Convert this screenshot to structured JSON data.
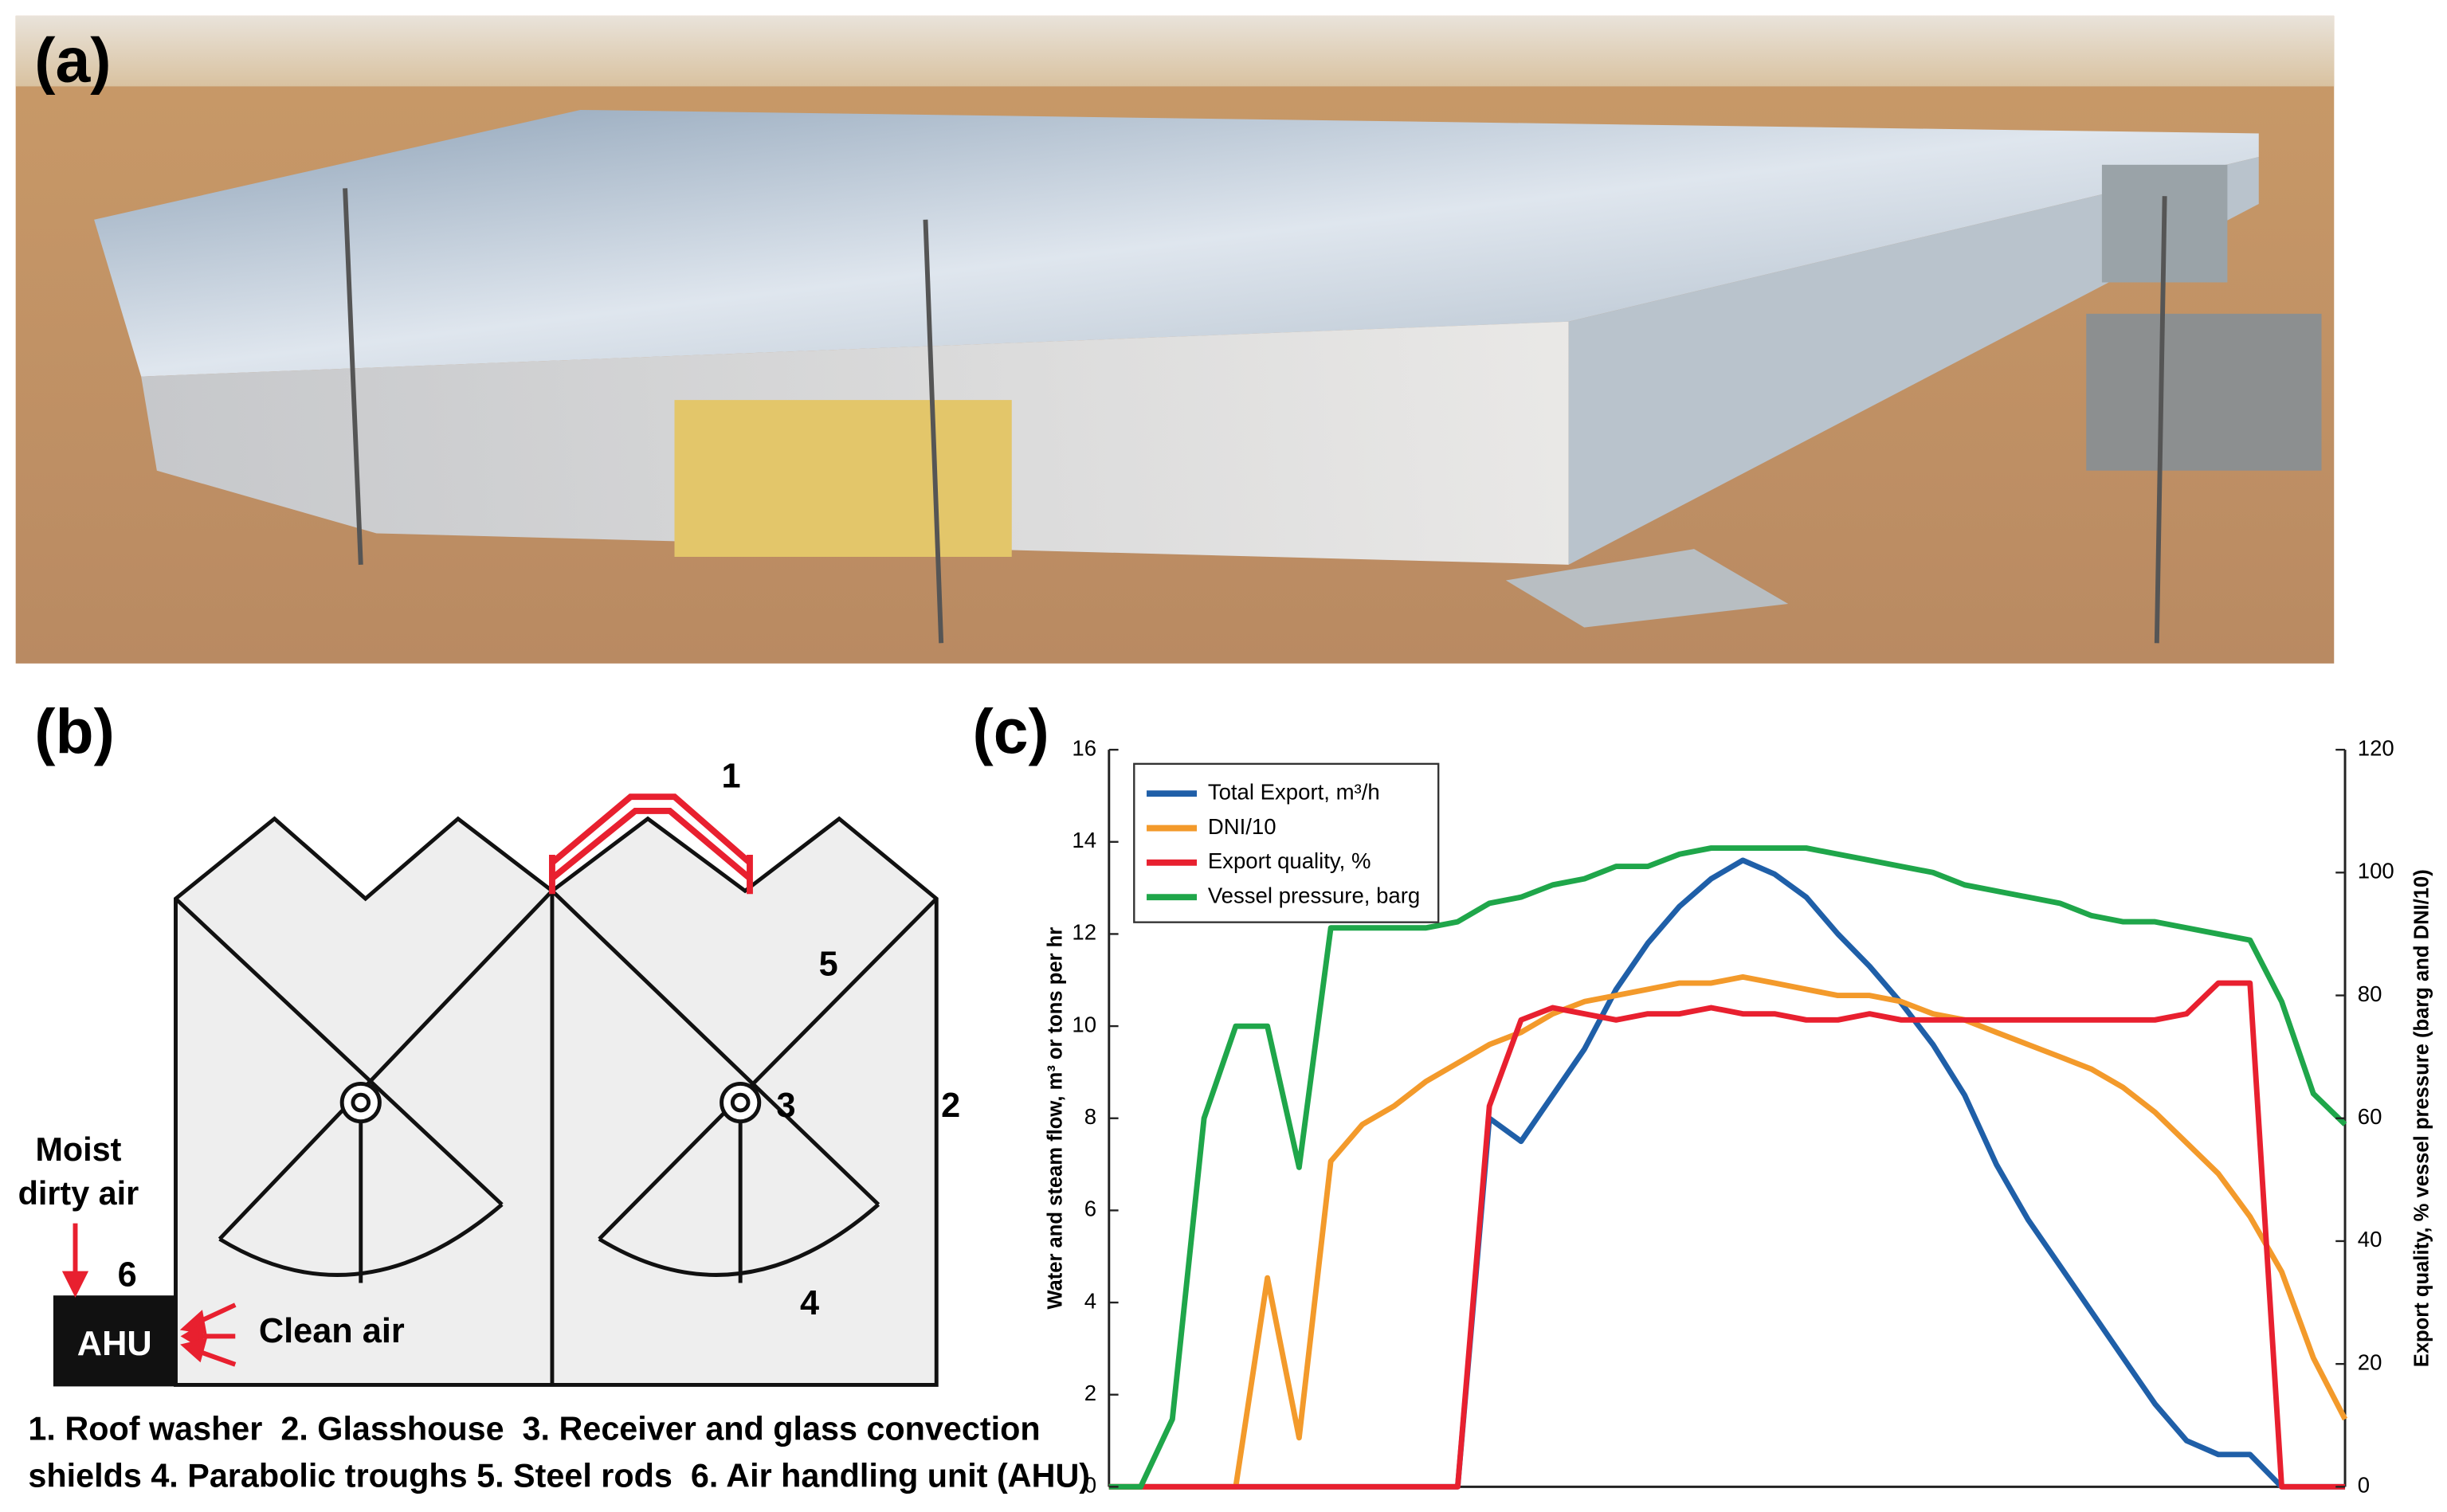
{
  "panels": {
    "a": {
      "label": "(a)"
    },
    "b": {
      "label": "(b)",
      "numbers": [
        "1",
        "2",
        "3",
        "4",
        "5",
        "6"
      ],
      "inlet": "Moist dirty air",
      "unit": "AHU",
      "outlet": "Clean air",
      "caption": [
        "1. Roof washer  2. Glasshouse  3. Receiver and glass convection",
        "shields 4. Parabolic troughs 5. Steel rods  6. Air handling unit (AHU)"
      ]
    },
    "c": {
      "label": "(c)"
    }
  },
  "chart_data": {
    "type": "line",
    "y_label": "Water and steam flow, m³ or tons per hr",
    "y2_label": "Export quality, % vessel pressure (barg and DNI/10)",
    "categories": [
      null,
      null,
      null,
      null,
      null,
      null,
      null,
      null,
      null,
      null,
      null,
      null,
      null,
      null,
      null,
      null,
      null,
      null,
      null,
      null,
      null,
      null,
      null,
      null,
      null,
      null,
      null,
      null,
      null,
      null,
      null,
      null,
      null,
      null,
      null,
      null,
      null,
      null,
      null,
      null
    ],
    "ylim": [
      0,
      16
    ],
    "yticks": [
      0,
      2,
      4,
      6,
      8,
      10,
      12,
      14,
      16
    ],
    "y2lim": [
      0,
      120
    ],
    "y2ticks": [
      0,
      20,
      40,
      60,
      80,
      100,
      120
    ],
    "legend": "upper left",
    "series": [
      {
        "name": "Total Export, m³/h",
        "color": "#1f5fa8",
        "values": [
          0,
          0,
          0,
          0,
          0,
          0,
          0,
          0,
          0,
          0,
          0,
          0,
          8,
          7.5,
          8.5,
          9.5,
          10.8,
          11.8,
          12.6,
          13.2,
          13.6,
          13.3,
          12.8,
          12.0,
          11.3,
          10.5,
          9.6,
          8.5,
          7.0,
          5.8,
          4.8,
          3.8,
          2.8,
          1.8,
          1.0,
          0.7,
          0.7,
          0,
          0,
          0
        ]
      },
      {
        "name": "DNI/10",
        "color": "#f39a2b",
        "axis": "y2",
        "values": [
          0,
          0,
          0,
          0,
          0,
          34,
          8,
          53,
          59,
          62,
          66,
          69,
          72,
          74,
          77,
          79,
          80,
          81,
          82,
          82,
          83,
          82,
          81,
          80,
          80,
          79,
          77,
          76,
          74,
          72,
          70,
          68,
          65,
          61,
          56,
          51,
          44,
          35,
          21,
          11
        ]
      },
      {
        "name": "Export quality, %",
        "color": "#e8202f",
        "axis": "y2",
        "values": [
          0,
          0,
          0,
          0,
          0,
          0,
          0,
          0,
          0,
          0,
          0,
          0,
          62,
          76,
          78,
          77,
          76,
          77,
          77,
          78,
          77,
          77,
          76,
          76,
          77,
          76,
          76,
          76,
          76,
          76,
          76,
          76,
          76,
          76,
          77,
          82,
          82,
          0,
          0,
          0
        ]
      },
      {
        "name": "Vessel pressure, barg",
        "color": "#1fa64a",
        "axis": "y2",
        "values": [
          0,
          0,
          11,
          60,
          75,
          75,
          52,
          91,
          91,
          91,
          91,
          92,
          95,
          96,
          98,
          99,
          101,
          101,
          103,
          104,
          104,
          104,
          104,
          103,
          102,
          101,
          100,
          98,
          97,
          96,
          95,
          93,
          92,
          92,
          91,
          90,
          89,
          79,
          64,
          59
        ]
      }
    ]
  }
}
